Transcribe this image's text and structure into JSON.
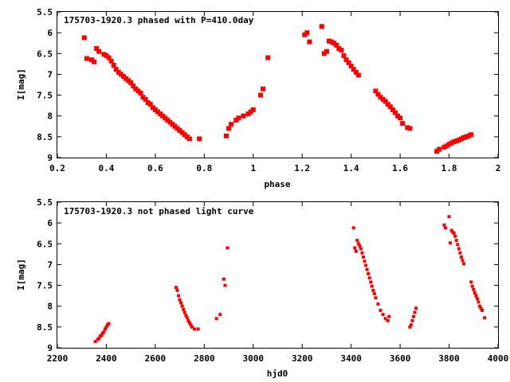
{
  "chart_data": [
    {
      "type": "scatter",
      "title": "175703-1920.3 phased with P=410.0day",
      "xlabel": "phase",
      "ylabel": "I[mag]",
      "xlim": [
        0.2,
        2
      ],
      "ylim": [
        5.5,
        9
      ],
      "y_inverted": true,
      "xticks": [
        "0.2",
        "0.4",
        "0.6",
        "0.8",
        "1",
        "1.2",
        "1.4",
        "1.6",
        "1.8",
        "2"
      ],
      "yticks": [
        "5.5",
        "6",
        "6.5",
        "7",
        "7.5",
        "8",
        "8.5",
        "9"
      ],
      "marker": "filled-square",
      "color": "#ff0000",
      "series": [
        {
          "x": [
            0.31,
            0.32,
            0.34,
            0.35,
            0.36,
            0.37,
            0.39,
            0.4,
            0.41,
            0.42,
            0.43,
            0.44,
            0.45,
            0.46,
            0.47,
            0.48,
            0.49,
            0.5,
            0.51,
            0.52,
            0.53,
            0.54,
            0.55,
            0.56,
            0.57,
            0.58,
            0.59,
            0.6,
            0.61,
            0.62,
            0.63,
            0.64,
            0.65,
            0.66,
            0.67,
            0.68,
            0.69,
            0.7,
            0.71,
            0.72,
            0.73,
            0.74,
            0.78,
            0.89,
            0.9,
            0.91,
            0.93,
            0.94,
            0.96,
            0.98,
            0.99,
            1.0,
            1.03,
            1.04,
            1.06,
            1.21,
            1.22,
            1.23,
            1.28,
            1.29,
            1.3,
            1.31,
            1.32,
            1.33,
            1.34,
            1.35,
            1.36,
            1.37,
            1.38,
            1.39,
            1.4,
            1.41,
            1.42,
            1.43,
            1.5,
            1.51,
            1.52,
            1.53,
            1.54,
            1.55,
            1.56,
            1.57,
            1.58,
            1.59,
            1.6,
            1.61,
            1.63,
            1.64,
            1.75,
            1.76,
            1.78,
            1.79,
            1.8,
            1.81,
            1.82,
            1.83,
            1.84,
            1.85,
            1.86,
            1.87,
            1.88,
            1.89
          ],
          "y": [
            6.12,
            6.62,
            6.65,
            6.7,
            6.38,
            6.45,
            6.52,
            6.55,
            6.6,
            6.68,
            6.78,
            6.88,
            6.95,
            7.0,
            7.05,
            7.1,
            7.15,
            7.2,
            7.28,
            7.35,
            7.4,
            7.45,
            7.55,
            7.6,
            7.68,
            7.72,
            7.8,
            7.85,
            7.9,
            7.95,
            8.0,
            8.05,
            8.1,
            8.15,
            8.2,
            8.25,
            8.3,
            8.35,
            8.4,
            8.45,
            8.5,
            8.55,
            8.55,
            8.48,
            8.3,
            8.2,
            8.1,
            8.05,
            8.0,
            7.95,
            7.9,
            7.85,
            7.5,
            7.35,
            6.6,
            6.05,
            6.0,
            6.22,
            5.85,
            6.5,
            6.45,
            6.2,
            6.22,
            6.25,
            6.3,
            6.38,
            6.42,
            6.55,
            6.65,
            6.72,
            6.8,
            6.88,
            6.95,
            7.02,
            7.4,
            7.48,
            7.55,
            7.6,
            7.65,
            7.72,
            7.78,
            7.85,
            7.92,
            8.0,
            8.05,
            8.18,
            8.28,
            8.3,
            8.85,
            8.8,
            8.75,
            8.72,
            8.68,
            8.65,
            8.62,
            8.6,
            8.58,
            8.55,
            8.52,
            8.5,
            8.48,
            8.45
          ]
        }
      ]
    },
    {
      "type": "scatter",
      "title": "175703-1920.3 not phased light curve",
      "xlabel": "hjd0",
      "ylabel": "I[mag]",
      "xlim": [
        2200,
        4000
      ],
      "ylim": [
        5.5,
        9
      ],
      "y_inverted": true,
      "xticks": [
        "2200",
        "2400",
        "2600",
        "2800",
        "3000",
        "3200",
        "3400",
        "3600",
        "3800",
        "4000"
      ],
      "yticks": [
        "5.5",
        "6",
        "6.5",
        "7",
        "7.5",
        "8",
        "8.5",
        "9"
      ],
      "marker": "filled-square",
      "color": "#ff0000",
      "series": [
        {
          "x": [
            2355,
            2365,
            2370,
            2375,
            2380,
            2385,
            2390,
            2395,
            2400,
            2405,
            2410,
            2685,
            2690,
            2695,
            2700,
            2705,
            2710,
            2715,
            2720,
            2725,
            2730,
            2735,
            2740,
            2745,
            2750,
            2760,
            2775,
            2850,
            2865,
            2880,
            2885,
            2895,
            3410,
            3415,
            3420,
            3425,
            3430,
            3435,
            3440,
            3445,
            3450,
            3455,
            3460,
            3465,
            3470,
            3475,
            3480,
            3485,
            3490,
            3495,
            3500,
            3510,
            3520,
            3530,
            3540,
            3550,
            3555,
            3640,
            3645,
            3650,
            3655,
            3660,
            3665,
            3780,
            3785,
            3800,
            3805,
            3810,
            3815,
            3820,
            3825,
            3830,
            3835,
            3840,
            3845,
            3850,
            3855,
            3860,
            3890,
            3895,
            3900,
            3905,
            3910,
            3915,
            3920,
            3925,
            3930,
            3935,
            3945
          ],
          "y": [
            8.85,
            8.8,
            8.78,
            8.72,
            8.7,
            8.65,
            8.62,
            8.55,
            8.5,
            8.45,
            8.42,
            7.55,
            7.62,
            7.75,
            7.85,
            7.92,
            8.0,
            8.08,
            8.15,
            8.22,
            8.28,
            8.35,
            8.4,
            8.45,
            8.5,
            8.55,
            8.55,
            8.3,
            8.2,
            7.35,
            7.5,
            6.6,
            6.12,
            6.6,
            6.68,
            6.42,
            6.5,
            6.55,
            6.62,
            6.72,
            6.82,
            6.92,
            7.02,
            7.12,
            7.22,
            7.32,
            7.42,
            7.52,
            7.62,
            7.7,
            7.8,
            7.95,
            8.1,
            8.2,
            8.3,
            8.35,
            8.25,
            8.5,
            8.45,
            8.35,
            8.25,
            8.15,
            8.05,
            6.05,
            6.12,
            5.85,
            6.48,
            6.18,
            6.22,
            6.25,
            6.32,
            6.42,
            6.52,
            6.62,
            6.72,
            6.82,
            6.9,
            6.98,
            7.42,
            7.52,
            7.6,
            7.68,
            7.75,
            7.82,
            7.9,
            8.0,
            8.05,
            8.1,
            8.28
          ]
        }
      ]
    }
  ]
}
